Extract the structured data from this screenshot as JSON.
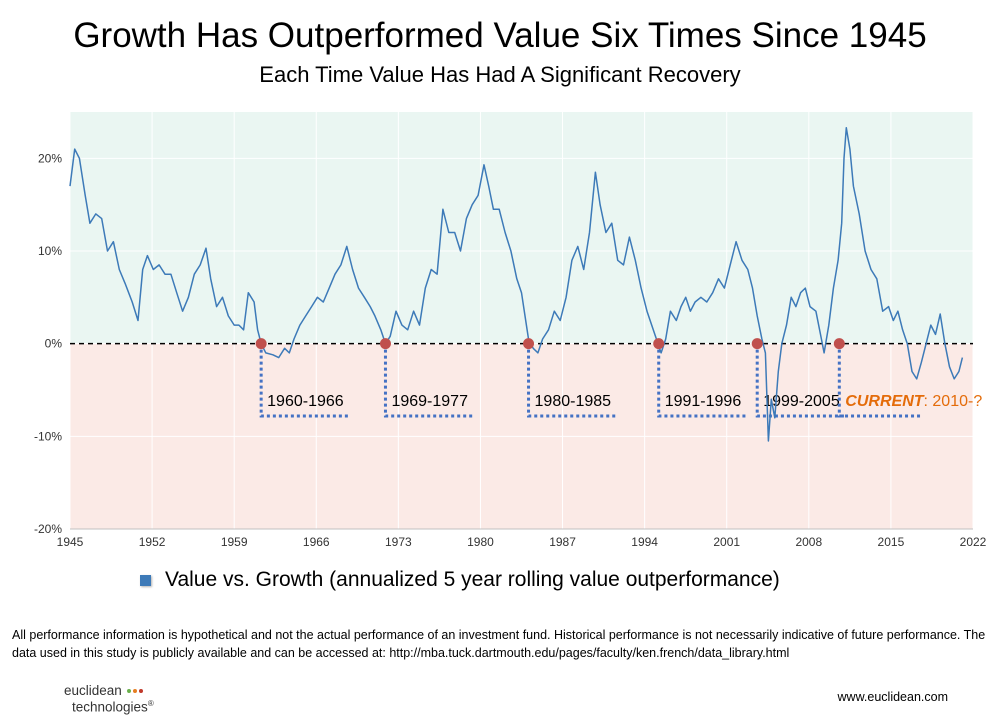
{
  "header": {
    "title": "Growth Has Outperformed Value Six Times Since 1945",
    "subtitle": "Each Time Value Has Had A Significant Recovery"
  },
  "chart_data": {
    "type": "line",
    "xlabel": "",
    "ylabel": "",
    "xlim": [
      1945,
      2022
    ],
    "ylim": [
      -20,
      25
    ],
    "x_ticks": [
      1945,
      1952,
      1959,
      1966,
      1973,
      1980,
      1987,
      1994,
      2001,
      2008,
      2015,
      2022
    ],
    "y_ticks": [
      {
        "value": 20,
        "label": "20%"
      },
      {
        "value": 10,
        "label": "10%"
      },
      {
        "value": 0,
        "label": "0%"
      },
      {
        "value": -10,
        "label": "-10%"
      },
      {
        "value": -20,
        "label": "-20%"
      }
    ],
    "background_bands": [
      {
        "from": 0,
        "to": 25,
        "color": "#eaf6f2"
      },
      {
        "from": -20,
        "to": 0,
        "color": "#fbeae6"
      }
    ],
    "zero_line": {
      "value": 0,
      "style": "dashed",
      "color": "#000000"
    },
    "series": [
      {
        "name": "Value vs. Growth (annualized 5 year rolling value outperformance)",
        "color": "#3d7ab8",
        "points": [
          [
            1945.0,
            17
          ],
          [
            1945.4,
            21
          ],
          [
            1945.8,
            20
          ],
          [
            1946.3,
            16
          ],
          [
            1946.7,
            13
          ],
          [
            1947.2,
            14
          ],
          [
            1947.7,
            13.5
          ],
          [
            1948.2,
            10
          ],
          [
            1948.7,
            11
          ],
          [
            1949.2,
            8
          ],
          [
            1949.7,
            6.5
          ],
          [
            1950.3,
            4.5
          ],
          [
            1950.8,
            2.5
          ],
          [
            1951.2,
            8
          ],
          [
            1951.6,
            9.5
          ],
          [
            1952.1,
            8
          ],
          [
            1952.6,
            8.5
          ],
          [
            1953.1,
            7.5
          ],
          [
            1953.6,
            7.5
          ],
          [
            1954.1,
            5.5
          ],
          [
            1954.6,
            3.5
          ],
          [
            1955.1,
            5
          ],
          [
            1955.6,
            7.5
          ],
          [
            1956.1,
            8.5
          ],
          [
            1956.6,
            10.3
          ],
          [
            1957.0,
            7
          ],
          [
            1957.5,
            4
          ],
          [
            1958.0,
            5
          ],
          [
            1958.5,
            3
          ],
          [
            1959.0,
            2
          ],
          [
            1959.4,
            2
          ],
          [
            1959.8,
            1.5
          ],
          [
            1960.2,
            5.5
          ],
          [
            1960.7,
            4.5
          ],
          [
            1961.0,
            1.5
          ],
          [
            1961.3,
            0
          ],
          [
            1961.7,
            -1
          ],
          [
            1962.3,
            -1.2
          ],
          [
            1962.8,
            -1.5
          ],
          [
            1963.3,
            -0.5
          ],
          [
            1963.7,
            -1
          ],
          [
            1964.1,
            0.5
          ],
          [
            1964.6,
            2
          ],
          [
            1965.1,
            3
          ],
          [
            1965.6,
            4
          ],
          [
            1966.1,
            5
          ],
          [
            1966.6,
            4.5
          ],
          [
            1967.1,
            6
          ],
          [
            1967.6,
            7.5
          ],
          [
            1968.1,
            8.5
          ],
          [
            1968.6,
            10.5
          ],
          [
            1969.1,
            8
          ],
          [
            1969.6,
            6
          ],
          [
            1970.1,
            5
          ],
          [
            1970.6,
            4
          ],
          [
            1971.0,
            3
          ],
          [
            1971.5,
            1.5
          ],
          [
            1971.9,
            0
          ],
          [
            1972.3,
            0.8
          ],
          [
            1972.8,
            3.5
          ],
          [
            1973.3,
            2
          ],
          [
            1973.8,
            1.5
          ],
          [
            1974.3,
            3.5
          ],
          [
            1974.8,
            2
          ],
          [
            1975.3,
            6
          ],
          [
            1975.8,
            8
          ],
          [
            1976.3,
            7.5
          ],
          [
            1976.8,
            14.5
          ],
          [
            1977.3,
            12
          ],
          [
            1977.8,
            12
          ],
          [
            1978.3,
            10
          ],
          [
            1978.8,
            13.5
          ],
          [
            1979.3,
            15
          ],
          [
            1979.8,
            16
          ],
          [
            1980.3,
            19.3
          ],
          [
            1980.7,
            17
          ],
          [
            1981.1,
            14.5
          ],
          [
            1981.6,
            14.5
          ],
          [
            1982.1,
            12
          ],
          [
            1982.6,
            10
          ],
          [
            1983.1,
            7
          ],
          [
            1983.5,
            5.5
          ],
          [
            1983.8,
            3
          ],
          [
            1984.1,
            0.5
          ],
          [
            1984.5,
            -0.5
          ],
          [
            1984.9,
            -1
          ],
          [
            1985.3,
            0.5
          ],
          [
            1985.8,
            1.5
          ],
          [
            1986.3,
            3.5
          ],
          [
            1986.8,
            2.5
          ],
          [
            1987.3,
            5
          ],
          [
            1987.8,
            9
          ],
          [
            1988.3,
            10.5
          ],
          [
            1988.8,
            8
          ],
          [
            1989.3,
            12
          ],
          [
            1989.8,
            18.5
          ],
          [
            1990.2,
            15
          ],
          [
            1990.7,
            12
          ],
          [
            1991.2,
            13
          ],
          [
            1991.7,
            9
          ],
          [
            1992.2,
            8.5
          ],
          [
            1992.7,
            11.5
          ],
          [
            1993.2,
            9
          ],
          [
            1993.7,
            6
          ],
          [
            1994.2,
            3.5
          ],
          [
            1994.6,
            2
          ],
          [
            1995.0,
            0.5
          ],
          [
            1995.4,
            -1
          ],
          [
            1995.8,
            0.5
          ],
          [
            1996.2,
            3.5
          ],
          [
            1996.7,
            2.5
          ],
          [
            1997.1,
            4
          ],
          [
            1997.5,
            5
          ],
          [
            1997.9,
            3.5
          ],
          [
            1998.3,
            4.5
          ],
          [
            1998.8,
            5
          ],
          [
            1999.3,
            4.5
          ],
          [
            1999.8,
            5.5
          ],
          [
            2000.3,
            7
          ],
          [
            2000.8,
            6
          ],
          [
            2001.3,
            8.5
          ],
          [
            2001.8,
            11
          ],
          [
            2002.3,
            9
          ],
          [
            2002.8,
            8
          ],
          [
            2003.2,
            6
          ],
          [
            2003.6,
            3
          ],
          [
            2004.0,
            0.5
          ],
          [
            2004.3,
            -1
          ],
          [
            2004.55,
            -10.5
          ],
          [
            2004.8,
            -6
          ],
          [
            2005.1,
            -8
          ],
          [
            2005.4,
            -3
          ],
          [
            2005.7,
            0
          ],
          [
            2006.1,
            2
          ],
          [
            2006.5,
            5
          ],
          [
            2006.9,
            4
          ],
          [
            2007.3,
            5.5
          ],
          [
            2007.7,
            6
          ],
          [
            2008.1,
            4
          ],
          [
            2008.6,
            3.5
          ],
          [
            2009.0,
            1
          ],
          [
            2009.3,
            -1
          ],
          [
            2009.7,
            2
          ],
          [
            2010.1,
            6
          ],
          [
            2010.5,
            9
          ],
          [
            2010.8,
            13
          ],
          [
            2011.0,
            20
          ],
          [
            2011.2,
            23.3
          ],
          [
            2011.5,
            21
          ],
          [
            2011.8,
            17
          ],
          [
            2012.3,
            14
          ],
          [
            2012.8,
            10
          ],
          [
            2013.3,
            8
          ],
          [
            2013.8,
            7
          ],
          [
            2014.3,
            3.5
          ],
          [
            2014.8,
            4
          ],
          [
            2015.2,
            2.5
          ],
          [
            2015.6,
            3.5
          ],
          [
            2016.0,
            1.5
          ],
          [
            2016.4,
            0
          ],
          [
            2016.8,
            -3
          ],
          [
            2017.2,
            -3.8
          ],
          [
            2017.6,
            -2
          ],
          [
            2018.0,
            0
          ],
          [
            2018.4,
            2
          ],
          [
            2018.8,
            1
          ],
          [
            2019.2,
            3.2
          ],
          [
            2019.6,
            0
          ],
          [
            2020.0,
            -2.5
          ],
          [
            2020.4,
            -3.8
          ],
          [
            2020.8,
            -3
          ],
          [
            2021.1,
            -1.5
          ]
        ]
      }
    ],
    "markers": [
      {
        "x": 1961.3,
        "y": 0,
        "color": "#c0504d"
      },
      {
        "x": 1971.9,
        "y": 0,
        "color": "#c0504d"
      },
      {
        "x": 1984.1,
        "y": 0,
        "color": "#c0504d"
      },
      {
        "x": 1995.2,
        "y": 0,
        "color": "#c0504d"
      },
      {
        "x": 2003.6,
        "y": 0,
        "color": "#c0504d"
      },
      {
        "x": 2010.6,
        "y": 0,
        "color": "#c0504d"
      }
    ],
    "annotations": [
      {
        "label": "1960-1966",
        "emphasis": "",
        "rest": "",
        "marker_x": 1961.3
      },
      {
        "label": "1969-1977",
        "emphasis": "",
        "rest": "",
        "marker_x": 1971.9
      },
      {
        "label": "1980-1985",
        "emphasis": "",
        "rest": "",
        "marker_x": 1984.1
      },
      {
        "label": "1991-1996",
        "emphasis": "",
        "rest": "",
        "marker_x": 1995.2
      },
      {
        "label": "1999-2005",
        "emphasis": "",
        "rest": "",
        "marker_x": 2003.6
      },
      {
        "label": "",
        "emphasis": "CURRENT",
        "rest": ": 2010-?",
        "marker_x": 2010.6
      }
    ],
    "annotation_color": "#4472c4",
    "current_color": "#e46c0a"
  },
  "legend": {
    "label": "Value vs. Growth (annualized 5 year rolling value outperformance)"
  },
  "footer": {
    "disclaimer": "All performance information is hypothetical and not the actual performance of an investment fund. Historical performance is not necessarily indicative of future performance. The data used in this study is publicly available and can be accessed at: http://mba.tuck.dartmouth.edu/pages/faculty/ken.french/data_library.html",
    "logo_line1": "euclidean",
    "logo_line2": "technologies",
    "logo_mark": "®",
    "website": "www.euclidean.com"
  }
}
